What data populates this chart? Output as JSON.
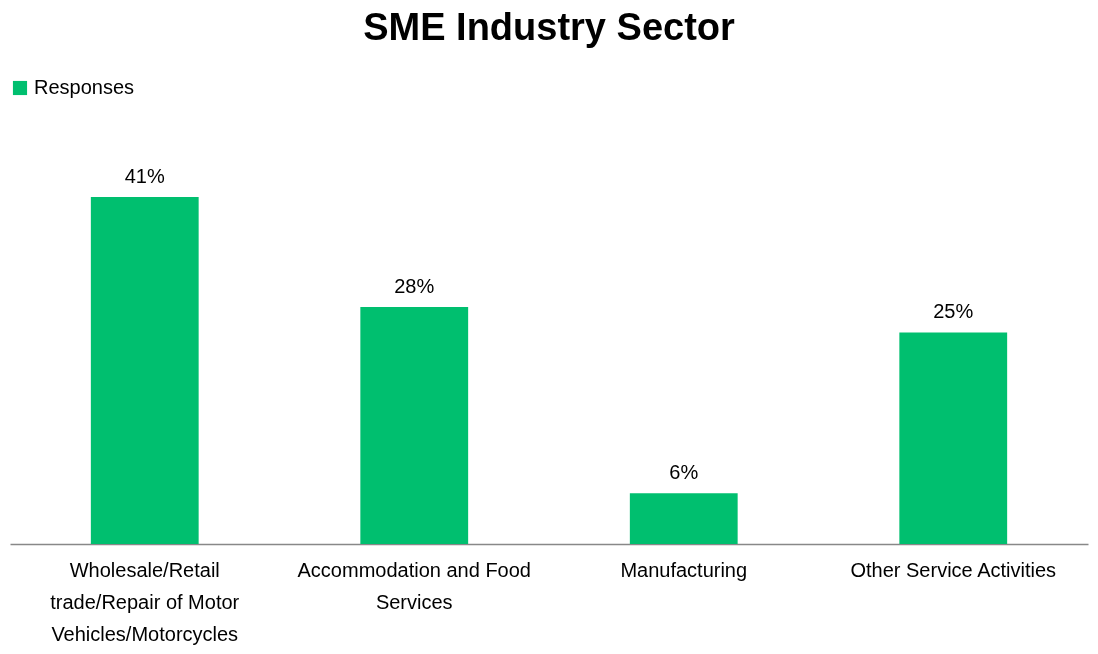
{
  "chart_data": {
    "type": "bar",
    "title": "SME Industry Sector",
    "categories": [
      "Wholesale/Retail trade/Repair of Motor Vehicles/Motorcycles",
      "Accommodation and Food Services",
      "Manufacturing",
      "Other Service Activities"
    ],
    "series": [
      {
        "name": "Responses",
        "color": "#00bf6f",
        "values": [
          41,
          28,
          6,
          25
        ],
        "value_labels": [
          "41%",
          "28%",
          "6%",
          "25%"
        ]
      }
    ],
    "legend": "top",
    "grid": false
  }
}
